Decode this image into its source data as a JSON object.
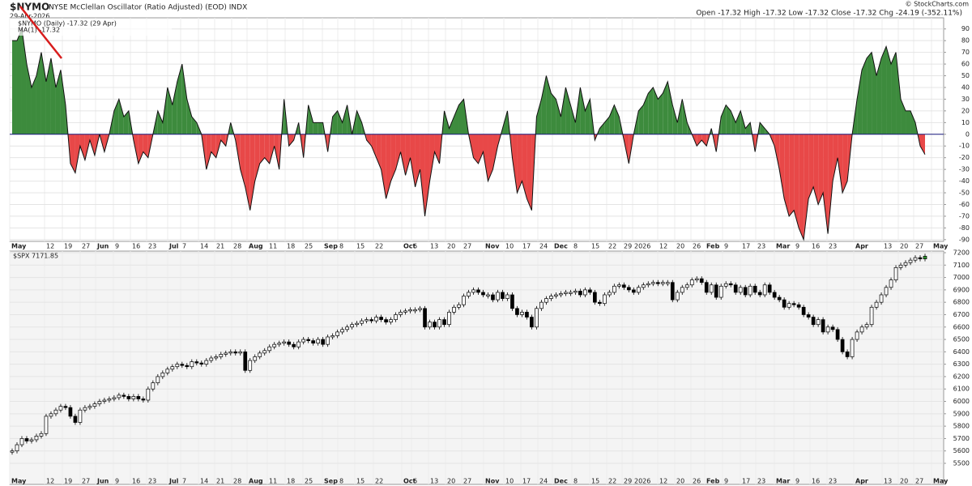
{
  "header": {
    "symbol": "$NYMO",
    "description": "NYSE McClellan Oscillator (Ratio Adjusted) (EOD) INDX",
    "date": "29-Apr-2026",
    "quote": "Open -17.32  High -17.32  Low -17.32  Close -17.32  Chg -24.19 (-352.11%)",
    "watermark": "© StockCharts.com"
  },
  "chart_data": [
    {
      "type": "area",
      "legend": [
        "$NYMO (Daily) -17.32 (29 Apr)",
        "MA(1) -17.32"
      ],
      "pos_color": "#3d8b3d",
      "neg_color": "#e84848",
      "line_color": "#111111",
      "zero_color": "#1a1a80",
      "ylim": [
        -91.5,
        99.5
      ],
      "yticks": [
        -90,
        -80,
        -70,
        -60,
        -50,
        -40,
        -30,
        -20,
        -10,
        0,
        10,
        20,
        30,
        40,
        50,
        60,
        70,
        80,
        90
      ],
      "values": [
        80,
        80,
        90,
        60,
        40,
        50,
        70,
        45,
        65,
        40,
        55,
        25,
        -25,
        -33,
        -10,
        -22,
        -5,
        -18,
        0,
        -15,
        0,
        20,
        30,
        15,
        20,
        -5,
        -25,
        -15,
        -20,
        0,
        20,
        10,
        40,
        25,
        45,
        60,
        30,
        15,
        10,
        0,
        -30,
        -15,
        -20,
        -5,
        -10,
        10,
        -5,
        -30,
        -45,
        -65,
        -40,
        -25,
        -20,
        -25,
        -10,
        -30,
        30,
        -10,
        -5,
        10,
        -20,
        25,
        10,
        10,
        10,
        -15,
        15,
        20,
        10,
        25,
        0,
        20,
        10,
        -5,
        -10,
        -20,
        -30,
        -55,
        -40,
        -30,
        -15,
        -35,
        -20,
        -45,
        -30,
        -70,
        -40,
        -15,
        -25,
        20,
        5,
        15,
        25,
        30,
        0,
        -20,
        -25,
        -15,
        -40,
        -30,
        -10,
        5,
        20,
        -20,
        -50,
        -40,
        -55,
        -65,
        15,
        30,
        50,
        35,
        30,
        15,
        40,
        25,
        10,
        40,
        20,
        30,
        -5,
        5,
        10,
        15,
        25,
        15,
        -5,
        -25,
        0,
        20,
        25,
        35,
        40,
        30,
        35,
        45,
        25,
        10,
        30,
        10,
        0,
        -10,
        -5,
        -10,
        5,
        -15,
        15,
        25,
        20,
        10,
        20,
        5,
        10,
        -15,
        10,
        5,
        0,
        -10,
        -30,
        -55,
        -70,
        -65,
        -80,
        -90,
        -55,
        -45,
        -60,
        -50,
        -85,
        -40,
        -20,
        -50,
        -40,
        0,
        30,
        55,
        65,
        70,
        50,
        65,
        75,
        60,
        70,
        30,
        20,
        20,
        10,
        -10,
        -17.32
      ],
      "xtick_labels": [
        "May",
        "12",
        "19",
        "27",
        "Jun",
        "9",
        "16",
        "23",
        "Jul",
        "7",
        "14",
        "21",
        "28",
        "Aug",
        "11",
        "18",
        "25",
        "Sep",
        "8",
        "15",
        "22",
        "Oct",
        "6",
        "13",
        "20",
        "27",
        "Nov",
        "10",
        "17",
        "24",
        "Dec",
        "8",
        "15",
        "22",
        "29",
        "2026",
        "12",
        "20",
        "26",
        "Feb",
        "9",
        "17",
        "23",
        "Mar",
        "9",
        "16",
        "23",
        "Apr",
        "13",
        "20",
        "27",
        "May"
      ]
    },
    {
      "type": "candlestick",
      "legend": [
        "$SPX 7171.85"
      ],
      "up_color": "#ffffff",
      "down_color": "#000000",
      "last_color": "#2e9b2e",
      "ylim": [
        5330,
        7213
      ],
      "yticks": [
        5500,
        5600,
        5700,
        5800,
        5900,
        6000,
        6100,
        6200,
        6300,
        6400,
        6500,
        6600,
        6700,
        6800,
        6900,
        7000,
        7100,
        7200
      ],
      "values": [
        5600,
        5650,
        5700,
        5680,
        5690,
        5720,
        5740,
        5880,
        5900,
        5930,
        5960,
        5950,
        5880,
        5830,
        5930,
        5950,
        5960,
        5980,
        6000,
        6010,
        6020,
        6030,
        6050,
        6040,
        6020,
        6040,
        6020,
        6010,
        6100,
        6150,
        6200,
        6230,
        6260,
        6280,
        6300,
        6290,
        6280,
        6320,
        6310,
        6300,
        6330,
        6350,
        6360,
        6380,
        6390,
        6400,
        6390,
        6400,
        6250,
        6330,
        6360,
        6390,
        6410,
        6440,
        6460,
        6470,
        6480,
        6460,
        6440,
        6480,
        6500,
        6490,
        6470,
        6500,
        6460,
        6520,
        6530,
        6560,
        6580,
        6600,
        6620,
        6630,
        6650,
        6660,
        6650,
        6680,
        6660,
        6640,
        6660,
        6700,
        6720,
        6730,
        6740,
        6740,
        6750,
        6600,
        6640,
        6600,
        6660,
        6620,
        6720,
        6760,
        6780,
        6850,
        6880,
        6900,
        6880,
        6860,
        6860,
        6820,
        6880,
        6830,
        6860,
        6750,
        6700,
        6720,
        6680,
        6600,
        6750,
        6800,
        6830,
        6850,
        6860,
        6870,
        6880,
        6880,
        6890,
        6860,
        6900,
        6880,
        6800,
        6790,
        6860,
        6880,
        6930,
        6940,
        6920,
        6900,
        6880,
        6920,
        6940,
        6950,
        6960,
        6950,
        6960,
        6960,
        6820,
        6880,
        6920,
        6940,
        6980,
        6990,
        6960,
        6880,
        6940,
        6840,
        6930,
        6950,
        6940,
        6880,
        6920,
        6860,
        6930,
        6880,
        6860,
        6940,
        6880,
        6840,
        6820,
        6760,
        6790,
        6780,
        6760,
        6700,
        6680,
        6620,
        6660,
        6560,
        6600,
        6580,
        6500,
        6400,
        6360,
        6500,
        6560,
        6600,
        6620,
        6760,
        6800,
        6860,
        6920,
        6980,
        7080,
        7100,
        7120,
        7140,
        7160,
        7150,
        7171.85
      ]
    }
  ]
}
